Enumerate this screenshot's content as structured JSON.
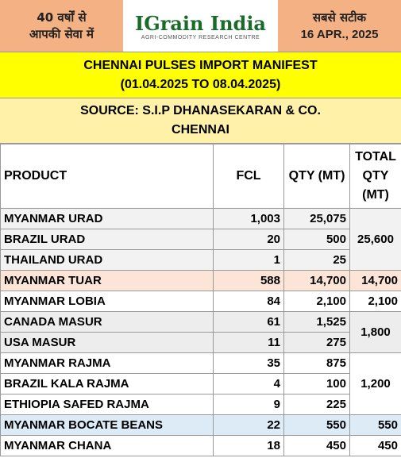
{
  "header": {
    "left": [
      "40 वर्षों से",
      "आपकी सेवा में"
    ],
    "logo": {
      "name": "IGrain India",
      "tagline": "AGRI-COMMODITY RESEARCH CENTRE"
    },
    "right": {
      "tagline": "सबसे सटीक",
      "date": "16 APR., 2025"
    }
  },
  "title": [
    "CHENNAI PULSES IMPORT MANIFEST",
    "(01.04.2025 TO 08.04.2025)"
  ],
  "source": [
    "SOURCE: S.I.P DHANASEKARAN & CO.",
    "CHENNAI"
  ],
  "table": {
    "columns": [
      "PRODUCT",
      "FCL",
      "QTY (MT)",
      "TOTAL QTY (MT)"
    ],
    "rows": [
      {
        "product": "MYANMAR URAD",
        "fcl": "1,003",
        "qty": "25,075",
        "total": "25,600"
      },
      {
        "product": "BRAZIL URAD",
        "fcl": "20",
        "qty": "500"
      },
      {
        "product": "THAILAND URAD",
        "fcl": "1",
        "qty": "25"
      },
      {
        "product": "MYANMAR TUAR",
        "fcl": "588",
        "qty": "14,700",
        "total": "14,700"
      },
      {
        "product": "MYANMAR LOBIA",
        "fcl": "84",
        "qty": "2,100",
        "total": "2,100"
      },
      {
        "product": "CANADA MASUR",
        "fcl": "61",
        "qty": "1,525",
        "total": "1,800"
      },
      {
        "product": "USA MASUR",
        "fcl": "11",
        "qty": "275"
      },
      {
        "product": "MYANMAR RAJMA",
        "fcl": "35",
        "qty": "875",
        "total": "1,200"
      },
      {
        "product": "BRAZIL KALA RAJMA",
        "fcl": "4",
        "qty": "100"
      },
      {
        "product": "ETHIOPIA SAFED RAJMA",
        "fcl": "9",
        "qty": "225"
      },
      {
        "product": "MYANMAR BOCATE BEANS",
        "fcl": "22",
        "qty": "550",
        "total": "550"
      },
      {
        "product": "MYANMAR CHANA",
        "fcl": "18",
        "qty": "450",
        "total": "450"
      }
    ]
  }
}
